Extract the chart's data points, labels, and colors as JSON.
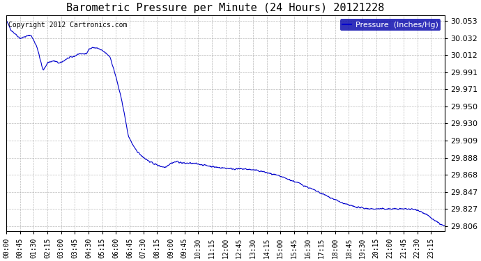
{
  "title": "Barometric Pressure per Minute (24 Hours) 20121228",
  "copyright_text": "Copyright 2012 Cartronics.com",
  "legend_label": "Pressure  (Inches/Hg)",
  "line_color": "#0000cc",
  "background_color": "#ffffff",
  "grid_color": "#aaaaaa",
  "legend_bg_color": "#0000aa",
  "legend_text_color": "#ffffff",
  "ylim": [
    29.8,
    30.06
  ],
  "yticks": [
    29.806,
    29.827,
    29.847,
    29.868,
    29.888,
    29.909,
    29.93,
    29.95,
    29.971,
    29.991,
    30.012,
    30.032,
    30.053
  ],
  "xtick_labels": [
    "00:00",
    "00:45",
    "01:30",
    "02:15",
    "03:00",
    "03:45",
    "04:30",
    "05:15",
    "06:00",
    "06:45",
    "07:30",
    "08:15",
    "09:00",
    "09:45",
    "10:30",
    "11:15",
    "12:00",
    "12:45",
    "13:30",
    "14:15",
    "15:00",
    "15:45",
    "16:30",
    "17:15",
    "18:00",
    "18:45",
    "19:30",
    "20:15",
    "21:00",
    "21:45",
    "22:30",
    "23:15"
  ],
  "keypoints_x": [
    0,
    15,
    45,
    60,
    80,
    100,
    120,
    135,
    155,
    175,
    200,
    220,
    240,
    255,
    265,
    270,
    285,
    300,
    320,
    340,
    360,
    380,
    400,
    420,
    435,
    450,
    465,
    480,
    500,
    520,
    540,
    560,
    580,
    600,
    630,
    660,
    690,
    720,
    750,
    780,
    810,
    840,
    870,
    900,
    930,
    960,
    990,
    1020,
    1050,
    1080,
    1110,
    1140,
    1170,
    1200,
    1230,
    1260,
    1290,
    1320,
    1350,
    1380,
    1410,
    1439
  ],
  "keypoints_y": [
    30.053,
    30.042,
    30.032,
    30.034,
    30.036,
    30.022,
    29.993,
    30.003,
    30.005,
    30.002,
    30.008,
    30.01,
    30.014,
    30.013,
    30.015,
    30.019,
    30.021,
    30.02,
    30.016,
    30.01,
    29.985,
    29.955,
    29.915,
    29.9,
    29.894,
    29.889,
    29.885,
    29.882,
    29.879,
    29.877,
    29.882,
    29.884,
    29.882,
    29.882,
    29.881,
    29.879,
    29.877,
    29.876,
    29.875,
    29.875,
    29.874,
    29.872,
    29.869,
    29.866,
    29.862,
    29.858,
    29.853,
    29.848,
    29.843,
    29.838,
    29.833,
    29.83,
    29.828,
    29.827,
    29.827,
    29.827,
    29.827,
    29.827,
    29.826,
    29.82,
    29.812,
    29.806
  ]
}
